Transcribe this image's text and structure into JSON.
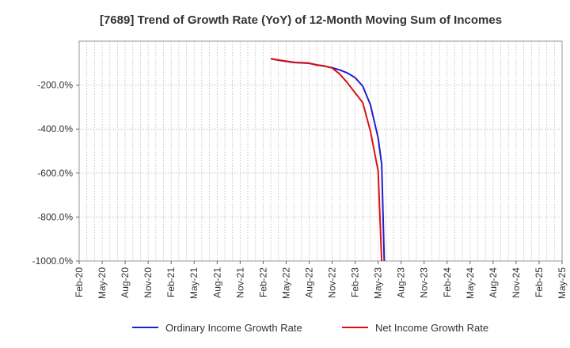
{
  "chart_data": {
    "type": "line",
    "title": "[7689]  Trend of Growth Rate (YoY) of 12-Month Moving Sum of Incomes",
    "xlabel": "",
    "ylabel": "",
    "x_tick_labels": [
      "Feb-20",
      "May-20",
      "Aug-20",
      "Nov-20",
      "Feb-21",
      "May-21",
      "Aug-21",
      "Nov-21",
      "Feb-22",
      "May-22",
      "Aug-22",
      "Nov-22",
      "Feb-23",
      "May-23",
      "Aug-23",
      "Nov-23",
      "Feb-24",
      "May-24",
      "Aug-24",
      "Nov-24",
      "Feb-25",
      "May-25"
    ],
    "y_tick_labels": [
      "-200.0%",
      "-400.0%",
      "-600.0%",
      "-800.0%",
      "-1000.0%"
    ],
    "y_ticks": [
      -200,
      -400,
      -600,
      -800,
      -1000
    ],
    "ylim": [
      -1000,
      0
    ],
    "x_range": [
      "2020-02",
      "2025-05"
    ],
    "grid": true,
    "legend_position": "bottom",
    "series": [
      {
        "name": "Ordinary Income Growth Rate",
        "color": "#1f1fcc",
        "x": [
          "2022-03",
          "2022-04",
          "2022-05",
          "2022-06",
          "2022-07",
          "2022-08",
          "2022-09",
          "2022-10",
          "2022-11",
          "2022-12",
          "2023-01",
          "2023-02",
          "2023-03",
          "2023-04",
          "2023-05",
          "2023-05-15",
          "2023-05-25"
        ],
        "y": [
          -80,
          -87,
          -92,
          -97,
          -99,
          -101,
          -109,
          -114,
          -121,
          -131,
          -145,
          -166,
          -205,
          -290,
          -440,
          -560,
          -1000
        ]
      },
      {
        "name": "Net Income Growth Rate",
        "color": "#e01010",
        "x": [
          "2022-03",
          "2022-04",
          "2022-05",
          "2022-06",
          "2022-07",
          "2022-08",
          "2022-09",
          "2022-10",
          "2022-11",
          "2022-12",
          "2023-01",
          "2023-02",
          "2023-03",
          "2023-04",
          "2023-05",
          "2023-05-15"
        ],
        "y": [
          -80,
          -86,
          -91,
          -96,
          -98,
          -100,
          -108,
          -113,
          -122,
          -150,
          -190,
          -235,
          -280,
          -410,
          -590,
          -1000
        ]
      }
    ]
  }
}
